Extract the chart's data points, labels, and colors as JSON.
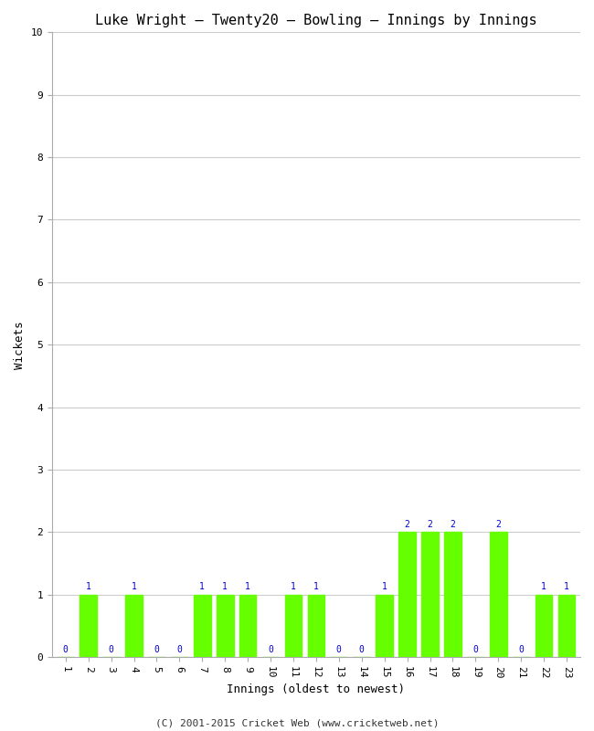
{
  "title": "Luke Wright – Twenty20 – Bowling – Innings by Innings",
  "xlabel": "Innings (oldest to newest)",
  "ylabel": "Wickets",
  "footnote": "(C) 2001-2015 Cricket Web (www.cricketweb.net)",
  "background_color": "#ffffff",
  "plot_bg_color": "#ffffff",
  "bar_color": "#66ff00",
  "label_color": "#0000cc",
  "grid_color": "#cccccc",
  "ylim": [
    0,
    10
  ],
  "yticks": [
    0,
    1,
    2,
    3,
    4,
    5,
    6,
    7,
    8,
    9,
    10
  ],
  "innings": [
    1,
    2,
    3,
    4,
    5,
    6,
    7,
    8,
    9,
    10,
    11,
    12,
    13,
    14,
    15,
    16,
    17,
    18,
    19,
    20,
    21,
    22,
    23
  ],
  "wickets": [
    0,
    1,
    0,
    1,
    0,
    0,
    1,
    1,
    1,
    0,
    1,
    1,
    0,
    0,
    1,
    2,
    2,
    2,
    0,
    2,
    0,
    1,
    1
  ],
  "title_fontsize": 11,
  "label_fontsize": 9,
  "tick_fontsize": 8,
  "annotation_fontsize": 7,
  "footnote_fontsize": 8,
  "bar_width": 0.75
}
